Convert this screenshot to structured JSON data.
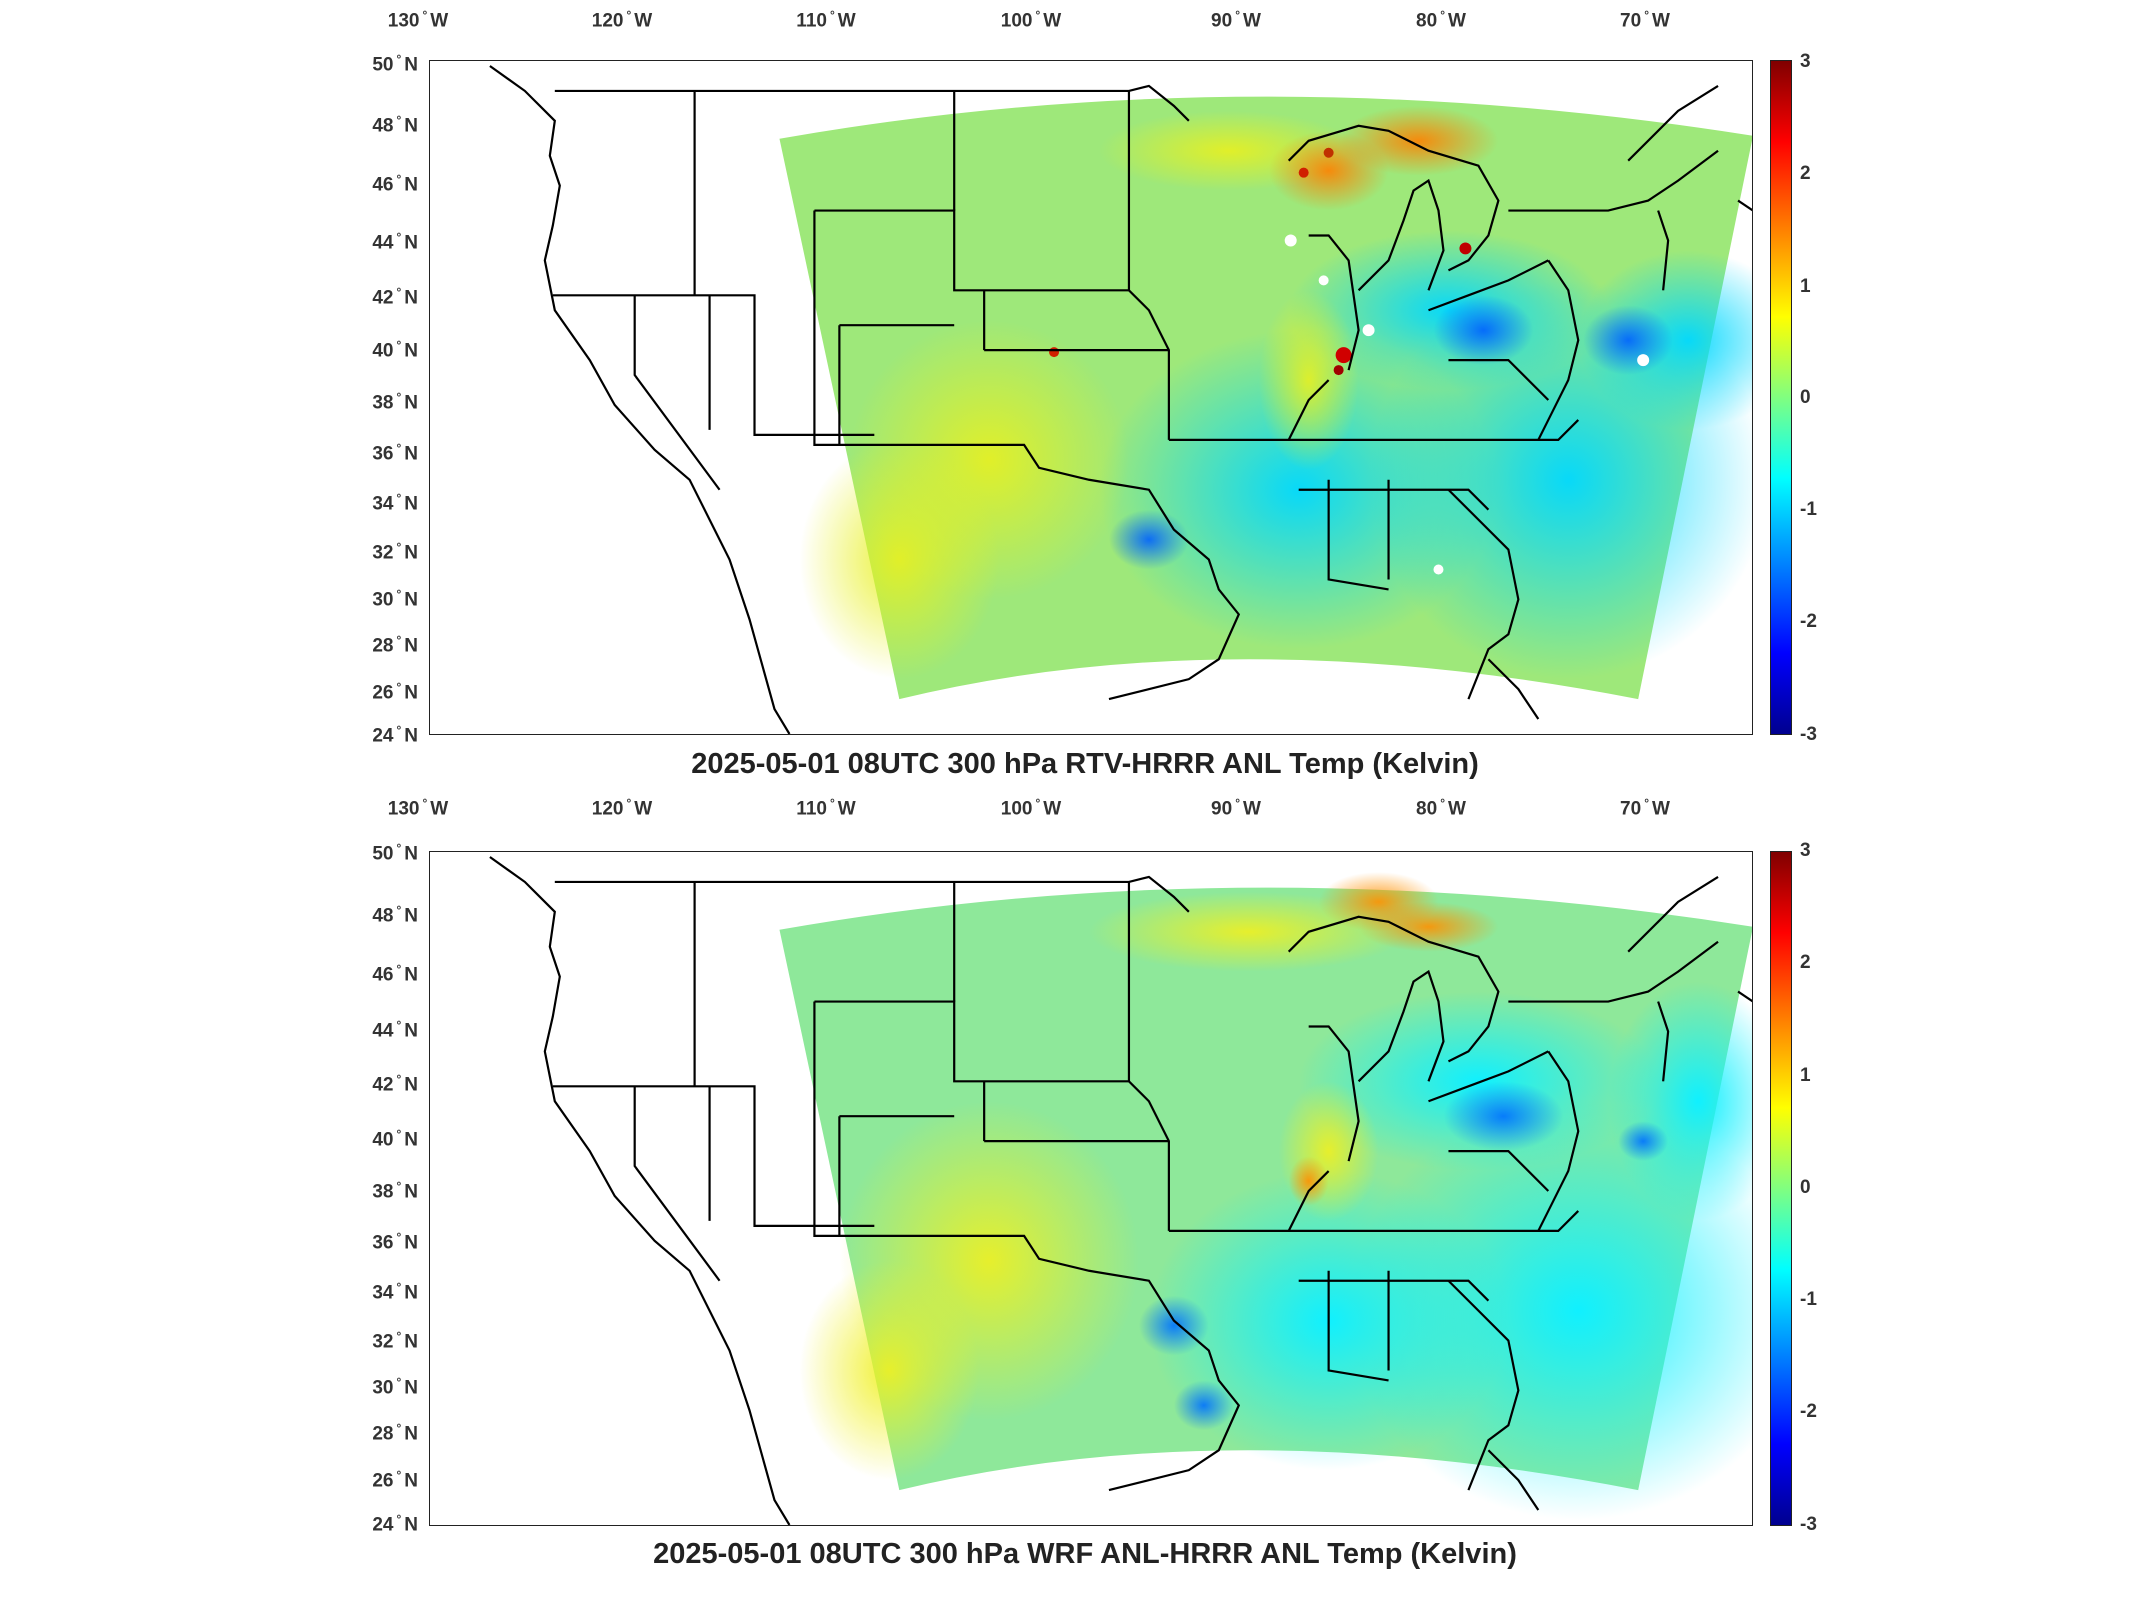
{
  "panels": [
    {
      "title": "2025-05-01 08UTC 300 hPa RTV-HRRR ANL Temp (Kelvin)",
      "lon_labels": [
        "130",
        "120",
        "110",
        "100",
        "90",
        "80",
        "70"
      ],
      "lat_labels": [
        "50",
        "48",
        "46",
        "44",
        "42",
        "40",
        "38",
        "36",
        "34",
        "32",
        "30",
        "28",
        "26",
        "24"
      ],
      "colorbar_ticks": [
        "3",
        "2",
        "1",
        "0",
        "-1",
        "-2",
        "-3"
      ]
    },
    {
      "title": "2025-05-01 08UTC 300 hPa WRF ANL-HRRR ANL Temp (Kelvin)",
      "lon_labels": [
        "130",
        "120",
        "110",
        "100",
        "90",
        "80",
        "70"
      ],
      "lat_labels": [
        "50",
        "48",
        "46",
        "44",
        "42",
        "40",
        "38",
        "36",
        "34",
        "32",
        "30",
        "28",
        "26",
        "24"
      ],
      "colorbar_ticks": [
        "3",
        "2",
        "1",
        "0",
        "-1",
        "-2",
        "-3"
      ]
    }
  ],
  "units": {
    "lon_suffix": "W",
    "lat_suffix": "N",
    "degree_symbol": "°"
  },
  "colorbar": {
    "min": -3,
    "max": 3,
    "colormap": "jet",
    "colors": [
      "#00008f",
      "#0000ff",
      "#0080ff",
      "#00ffff",
      "#80ff80",
      "#ffff00",
      "#ff8000",
      "#ff0000",
      "#800000"
    ]
  }
}
